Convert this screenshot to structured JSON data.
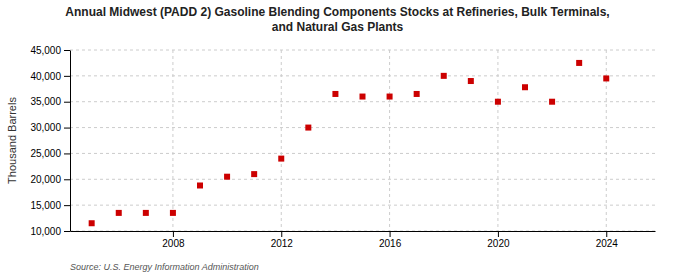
{
  "chart_data": {
    "type": "scatter",
    "title": "Annual Midwest (PADD 2) Gasoline Blending Components Stocks at Refineries, Bulk Terminals,\nand Natural Gas Plants",
    "y_label": "Thousand Barrels",
    "annotations": [
      "Source: U.S. Energy Information Administration"
    ],
    "x": [
      2005,
      2006,
      2007,
      2008,
      2009,
      2010,
      2011,
      2012,
      2013,
      2014,
      2015,
      2016,
      2017,
      2018,
      2019,
      2020,
      2021,
      2022,
      2023,
      2024
    ],
    "values": [
      11500,
      13500,
      13500,
      13500,
      18800,
      20500,
      21000,
      24000,
      30000,
      36500,
      36000,
      36000,
      36500,
      40000,
      39000,
      35000,
      37800,
      35000,
      42500,
      39500
    ],
    "color": "#cc0000",
    "marker": "square",
    "xlim": [
      2004.2,
      2025.8
    ],
    "xticks": [
      2008,
      2012,
      2016,
      2020,
      2024
    ],
    "ylim": [
      10000,
      45000
    ],
    "yticks": [
      {
        "value": 10000,
        "label": "10,000"
      },
      {
        "value": 15000,
        "label": "15,000"
      },
      {
        "value": 20000,
        "label": "20,000"
      },
      {
        "value": 25000,
        "label": "25,000"
      },
      {
        "value": 30000,
        "label": "30,000"
      },
      {
        "value": 35000,
        "label": "35,000"
      },
      {
        "value": 40000,
        "label": "40,000"
      },
      {
        "value": 45000,
        "label": "45,000"
      }
    ],
    "grid": true
  }
}
